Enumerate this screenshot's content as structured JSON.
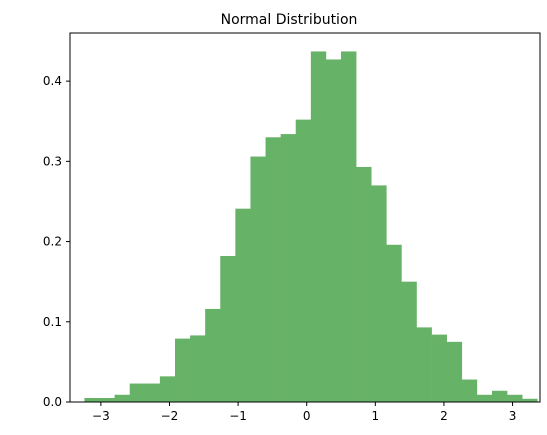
{
  "chart_data": {
    "type": "bar",
    "title": "Normal Distribution",
    "xlabel": "",
    "ylabel": "",
    "xlim": [
      -3.45,
      3.4
    ],
    "ylim": [
      0,
      0.46
    ],
    "grid": false,
    "bar_color": "#66b266",
    "bins": [
      {
        "x0": -3.24,
        "x1": -3.02,
        "value": 0.005
      },
      {
        "x0": -3.02,
        "x1": -2.8,
        "value": 0.005
      },
      {
        "x0": -2.8,
        "x1": -2.58,
        "value": 0.009
      },
      {
        "x0": -2.58,
        "x1": -2.36,
        "value": 0.023
      },
      {
        "x0": -2.36,
        "x1": -2.14,
        "value": 0.023
      },
      {
        "x0": -2.14,
        "x1": -1.92,
        "value": 0.032
      },
      {
        "x0": -1.92,
        "x1": -1.7,
        "value": 0.079
      },
      {
        "x0": -1.7,
        "x1": -1.48,
        "value": 0.083
      },
      {
        "x0": -1.48,
        "x1": -1.26,
        "value": 0.116
      },
      {
        "x0": -1.26,
        "x1": -1.04,
        "value": 0.182
      },
      {
        "x0": -1.04,
        "x1": -0.82,
        "value": 0.241
      },
      {
        "x0": -0.82,
        "x1": -0.6,
        "value": 0.306
      },
      {
        "x0": -0.6,
        "x1": -0.38,
        "value": 0.33
      },
      {
        "x0": -0.38,
        "x1": -0.16,
        "value": 0.334
      },
      {
        "x0": -0.16,
        "x1": 0.06,
        "value": 0.352
      },
      {
        "x0": 0.06,
        "x1": 0.28,
        "value": 0.437
      },
      {
        "x0": 0.28,
        "x1": 0.5,
        "value": 0.427
      },
      {
        "x0": 0.5,
        "x1": 0.72,
        "value": 0.437
      },
      {
        "x0": 0.72,
        "x1": 0.94,
        "value": 0.293
      },
      {
        "x0": 0.94,
        "x1": 1.16,
        "value": 0.27
      },
      {
        "x0": 1.16,
        "x1": 1.38,
        "value": 0.196
      },
      {
        "x0": 1.38,
        "x1": 1.6,
        "value": 0.15
      },
      {
        "x0": 1.6,
        "x1": 1.82,
        "value": 0.093
      },
      {
        "x0": 1.82,
        "x1": 2.04,
        "value": 0.084
      },
      {
        "x0": 2.04,
        "x1": 2.26,
        "value": 0.075
      },
      {
        "x0": 2.26,
        "x1": 2.48,
        "value": 0.028
      },
      {
        "x0": 2.48,
        "x1": 2.7,
        "value": 0.009
      },
      {
        "x0": 2.7,
        "x1": 2.92,
        "value": 0.014
      },
      {
        "x0": 2.92,
        "x1": 3.14,
        "value": 0.009
      },
      {
        "x0": 3.14,
        "x1": 3.36,
        "value": 0.004
      }
    ],
    "xticks": [
      {
        "value": -3,
        "label": "−3"
      },
      {
        "value": -2,
        "label": "−2"
      },
      {
        "value": -1,
        "label": "−1"
      },
      {
        "value": 0,
        "label": "0"
      },
      {
        "value": 1,
        "label": "1"
      },
      {
        "value": 2,
        "label": "2"
      },
      {
        "value": 3,
        "label": "3"
      }
    ],
    "yticks": [
      {
        "value": 0.0,
        "label": "0.0"
      },
      {
        "value": 0.1,
        "label": "0.1"
      },
      {
        "value": 0.2,
        "label": "0.2"
      },
      {
        "value": 0.3,
        "label": "0.3"
      },
      {
        "value": 0.4,
        "label": "0.4"
      }
    ]
  }
}
